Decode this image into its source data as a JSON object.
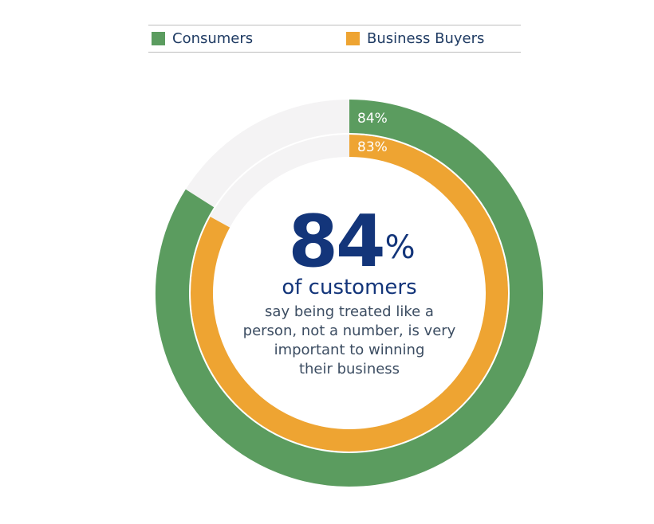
{
  "chart_data": {
    "type": "donut",
    "series": [
      {
        "name": "Consumers",
        "value": 84,
        "unit": "%",
        "label": "84%",
        "color": "#5b9c5f"
      },
      {
        "name": "Business Buyers",
        "value": 83,
        "unit": "%",
        "label": "83%",
        "color": "#eea432"
      }
    ],
    "track_color": "#f4f3f4",
    "legend_position": "top",
    "center": {
      "value": "84",
      "unit": "%",
      "headline": "of customers",
      "description": [
        "say being treated like a",
        "person, not a number, is very",
        "important to winning",
        "their business"
      ]
    }
  },
  "colors": {
    "text_dark": "#13357a",
    "text_body": "#3c4d62"
  }
}
